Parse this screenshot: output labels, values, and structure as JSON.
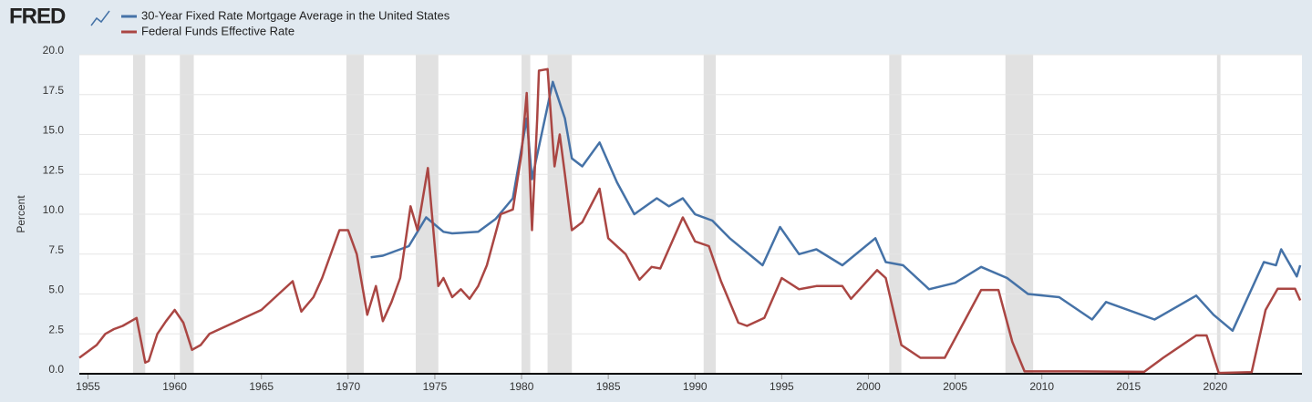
{
  "chart_data": {
    "type": "line",
    "logo": "FRED",
    "y_label": "Percent",
    "xlim": [
      1954.5,
      2025
    ],
    "ylim": [
      0,
      20
    ],
    "xticks": [
      1955,
      1960,
      1965,
      1970,
      1975,
      1980,
      1985,
      1990,
      1995,
      2000,
      2005,
      2010,
      2015,
      2020
    ],
    "yticks": [
      {
        "value": 0,
        "label": "0.0"
      },
      2.5,
      {
        "value": 5,
        "label": "5.0"
      },
      7.5,
      {
        "value": 10,
        "label": "10.0"
      },
      12.5,
      {
        "value": 15,
        "label": "15.0"
      },
      17.5,
      {
        "value": 20,
        "label": "20.0"
      }
    ],
    "grid": true,
    "recession_color": "#e1e1e1",
    "recessions": [
      [
        1957.6,
        1958.3
      ],
      [
        1960.3,
        1961.1
      ],
      [
        1969.9,
        1970.9
      ],
      [
        1973.9,
        1975.2
      ],
      [
        1980.0,
        1980.5
      ],
      [
        1981.5,
        1982.9
      ],
      [
        1990.5,
        1991.2
      ],
      [
        2001.2,
        2001.9
      ],
      [
        2007.9,
        2009.5
      ],
      [
        2020.1,
        2020.3
      ]
    ],
    "series": [
      {
        "name": "30-Year Fixed Rate Mortgage Average in the United States",
        "color": "#4572a7",
        "x": [
          1971.3,
          1972,
          1973.5,
          1974.5,
          1975.5,
          1976,
          1977.5,
          1978.5,
          1979.5,
          1980.3,
          1980.6,
          1981.8,
          1982.5,
          1982.9,
          1983.5,
          1984.5,
          1985.5,
          1986.5,
          1987.8,
          1988.5,
          1989.3,
          1990,
          1991,
          1992,
          1993.9,
          1994.9,
          1996,
          1997,
          1998.5,
          2000.4,
          2001,
          2002,
          2003.5,
          2005,
          2006.5,
          2008,
          2009.2,
          2011,
          2012.9,
          2013.7,
          2016.5,
          2018.9,
          2019.9,
          2021,
          2022.8,
          2023.5,
          2023.8,
          2024.7,
          2024.9
        ],
        "values": [
          7.3,
          7.4,
          8.0,
          9.8,
          8.9,
          8.8,
          8.9,
          9.7,
          11.0,
          16.0,
          12.2,
          18.3,
          16.0,
          13.5,
          13.0,
          14.5,
          12.0,
          10.0,
          11.0,
          10.5,
          11.0,
          10.0,
          9.6,
          8.5,
          6.8,
          9.2,
          7.5,
          7.8,
          6.8,
          8.5,
          7.0,
          6.8,
          5.3,
          5.7,
          6.7,
          6.0,
          5.0,
          4.8,
          3.4,
          4.5,
          3.4,
          4.9,
          3.7,
          2.7,
          7.0,
          6.8,
          7.8,
          6.1,
          6.8
        ]
      },
      {
        "name": "Federal Funds Effective Rate",
        "color": "#aa4643",
        "x": [
          1954.5,
          1955,
          1955.5,
          1956,
          1956.5,
          1957,
          1957.8,
          1958.3,
          1958.5,
          1959,
          1959.5,
          1960,
          1960.5,
          1961,
          1961.5,
          1962,
          1963,
          1964,
          1965,
          1966,
          1966.8,
          1967.3,
          1968,
          1968.5,
          1969.5,
          1970,
          1970.5,
          1971.1,
          1971.6,
          1972,
          1972.5,
          1973,
          1973.6,
          1974,
          1974.6,
          1975.2,
          1975.5,
          1976,
          1976.5,
          1977,
          1977.5,
          1978,
          1978.8,
          1979.5,
          1980,
          1980.3,
          1980.6,
          1980.9,
          1981,
          1981.5,
          1981.9,
          1982.2,
          1982.5,
          1982.9,
          1983.5,
          1984.5,
          1985,
          1986,
          1986.8,
          1987.5,
          1988,
          1989.3,
          1990,
          1990.8,
          1991.5,
          1992.5,
          1993,
          1994,
          1995,
          1996,
          1997,
          1998.5,
          1999,
          2000.5,
          2001,
          2001.9,
          2003,
          2004.4,
          2006.5,
          2007.5,
          2008.3,
          2009,
          2012,
          2015.9,
          2017,
          2018.9,
          2019.5,
          2020.2,
          2022.1,
          2022.9,
          2023.6,
          2024.6,
          2024.9
        ],
        "values": [
          1.0,
          1.4,
          1.8,
          2.5,
          2.8,
          3.0,
          3.5,
          0.7,
          0.8,
          2.5,
          3.3,
          4.0,
          3.2,
          1.5,
          1.8,
          2.5,
          3.0,
          3.5,
          4.0,
          5.0,
          5.8,
          3.9,
          4.8,
          6.0,
          9.0,
          9.0,
          7.5,
          3.7,
          5.5,
          3.3,
          4.5,
          6.0,
          10.5,
          9.0,
          12.9,
          5.5,
          6.0,
          4.8,
          5.3,
          4.7,
          5.5,
          6.8,
          10.0,
          10.3,
          13.8,
          17.6,
          9.0,
          16.0,
          19.0,
          19.1,
          13.0,
          15.0,
          12.5,
          9.0,
          9.5,
          11.6,
          8.5,
          7.5,
          5.9,
          6.7,
          6.6,
          9.8,
          8.3,
          8.0,
          5.8,
          3.2,
          3.0,
          3.5,
          6.0,
          5.3,
          5.5,
          5.5,
          4.7,
          6.5,
          6.0,
          1.8,
          1.0,
          1.0,
          5.25,
          5.25,
          2.0,
          0.15,
          0.15,
          0.12,
          1.0,
          2.4,
          2.4,
          0.05,
          0.1,
          4.0,
          5.33,
          5.33,
          4.6
        ]
      }
    ]
  }
}
